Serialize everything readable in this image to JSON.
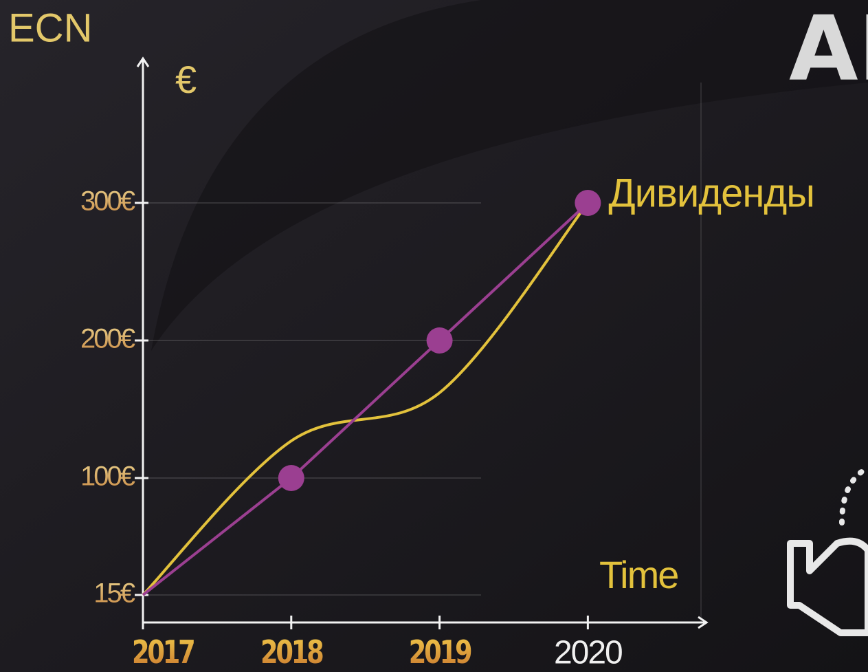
{
  "chart_data": {
    "type": "line",
    "title": "ECN",
    "heading": "AI",
    "y_label": "€",
    "x_label": "Time",
    "x": [
      2017,
      2018,
      2019,
      2020
    ],
    "series": [
      {
        "name": "Дивиденды",
        "color": "#9b3f91",
        "values": [
          15,
          100,
          200,
          300
        ],
        "markers": true
      },
      {
        "color": "#e3c23c",
        "values": [
          15,
          127,
          162,
          300
        ],
        "smooth": true
      }
    ],
    "xlim": [
      2017,
      2020.8
    ],
    "xticks": [
      2017,
      2018,
      2019,
      2020
    ],
    "ylim": [
      -5,
      405
    ],
    "yticks": [
      {
        "value": 15,
        "label": "15€"
      },
      {
        "value": 100,
        "label": "100€"
      },
      {
        "value": 200,
        "label": "200€"
      },
      {
        "value": 300,
        "label": "300€"
      }
    ],
    "grid": true
  }
}
